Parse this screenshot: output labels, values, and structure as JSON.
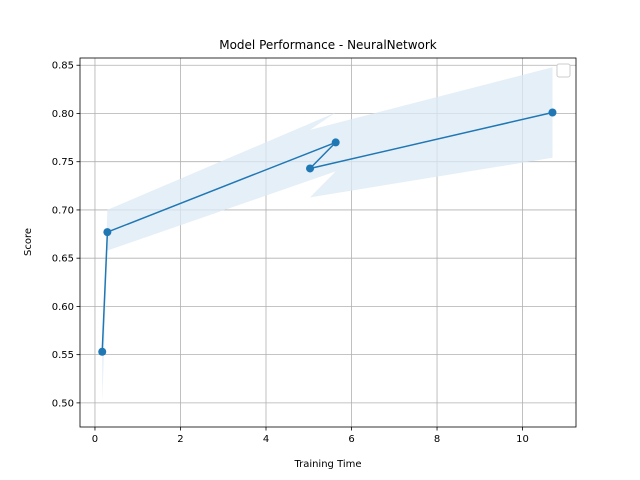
{
  "chart_data": {
    "type": "line",
    "title": "Model Performance - NeuralNetwork",
    "xlabel": "Training Time",
    "ylabel": "Score",
    "xlim": [
      -0.35,
      11.25
    ],
    "ylim": [
      0.475,
      0.8575
    ],
    "xticks": [
      0,
      2,
      4,
      6,
      8,
      10
    ],
    "yticks": [
      0.5,
      0.55,
      0.6,
      0.65,
      0.7,
      0.75,
      0.8,
      0.85
    ],
    "xtick_labels": [
      "0",
      "2",
      "4",
      "6",
      "8",
      "10"
    ],
    "ytick_labels": [
      "0.50",
      "0.55",
      "0.60",
      "0.65",
      "0.70",
      "0.75",
      "0.80",
      "0.85"
    ],
    "grid": true,
    "legend": "top-right",
    "color": "#1f77b4",
    "band_color": "#dce9f5",
    "series": [
      {
        "x": [
          0.17,
          0.29,
          5.63,
          5.03,
          10.7
        ],
        "y": [
          0.553,
          0.677,
          0.77,
          0.743,
          0.801
        ],
        "band_upper": [
          0.555,
          0.7,
          0.801,
          0.783,
          0.848
        ],
        "band_lower": [
          0.5,
          0.658,
          0.74,
          0.713,
          0.754
        ]
      }
    ]
  }
}
